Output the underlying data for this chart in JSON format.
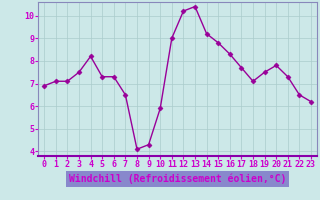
{
  "x": [
    0,
    1,
    2,
    3,
    4,
    5,
    6,
    7,
    8,
    9,
    10,
    11,
    12,
    13,
    14,
    15,
    16,
    17,
    18,
    19,
    20,
    21,
    22,
    23
  ],
  "y": [
    6.9,
    7.1,
    7.1,
    7.5,
    8.2,
    7.3,
    7.3,
    6.5,
    4.1,
    4.3,
    5.9,
    9.0,
    10.2,
    10.4,
    9.2,
    8.8,
    8.3,
    7.7,
    7.1,
    7.5,
    7.8,
    7.3,
    6.5,
    6.2
  ],
  "line_color": "#990099",
  "marker": "D",
  "markersize": 2.5,
  "linewidth": 1.0,
  "bg_color": "#cce8e8",
  "grid_color": "#aacccc",
  "xlabel": "Windchill (Refroidissement éolien,°C)",
  "xlabel_color": "#cc00cc",
  "xlabel_bg": "#8888cc",
  "axis_label_color": "#cc00cc",
  "ylim": [
    3.8,
    10.6
  ],
  "xlim": [
    -0.5,
    23.5
  ],
  "yticks": [
    4,
    5,
    6,
    7,
    8,
    9,
    10
  ],
  "xticks": [
    0,
    1,
    2,
    3,
    4,
    5,
    6,
    7,
    8,
    9,
    10,
    11,
    12,
    13,
    14,
    15,
    16,
    17,
    18,
    19,
    20,
    21,
    22,
    23
  ],
  "tick_fontsize": 6,
  "xlabel_fontsize": 7,
  "spine_color": "#8888bb"
}
